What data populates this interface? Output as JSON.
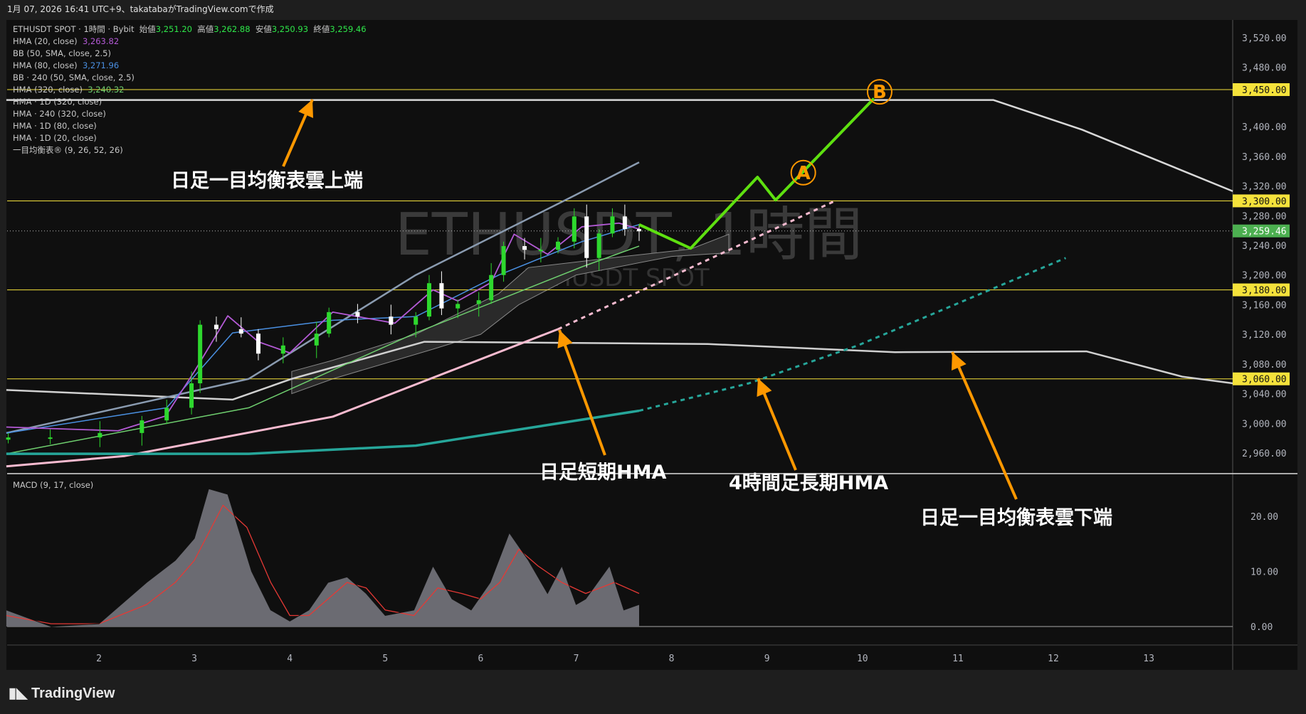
{
  "header": {
    "caption": "1月 07, 2026 16:41 UTC+9、takatabaがTradingView.comで作成"
  },
  "legend": {
    "symbol": "ETHUSDT SPOT · 1時間 · Bybit",
    "open_label": "始値",
    "open": "3,251.20",
    "high_label": "高値",
    "high": "3,262.88",
    "low_label": "安値",
    "low": "3,250.93",
    "close_label": "終値",
    "close": "3,259.46",
    "indicators": [
      {
        "name": "HMA (20, close)",
        "value": "3,263.82",
        "color": "#b45ad6"
      },
      {
        "name": "BB (50, SMA, close, 2.5)",
        "value": ""
      },
      {
        "name": "HMA (80, close)",
        "value": "3,271.96",
        "color": "#4a90e2"
      },
      {
        "name": "BB · 240 (50, SMA, close, 2.5)",
        "value": ""
      },
      {
        "name": "HMA (320, close)",
        "value": "3,240.32",
        "color": "#6fcf6f"
      },
      {
        "name": "HMA · 1D (320, close)",
        "value": ""
      },
      {
        "name": "HMA · 240 (320, close)",
        "value": ""
      },
      {
        "name": "HMA · 1D (80, close)",
        "value": ""
      },
      {
        "name": "HMA · 1D (20, close)",
        "value": ""
      },
      {
        "name": "一目均衡表® (9, 26, 52, 26)",
        "value": ""
      }
    ]
  },
  "watermark": {
    "title": "ETHUSDT, 1時間",
    "subtitle": "ETHUSDT SPOT"
  },
  "annotations": {
    "cloud_top": "日足一目均衡表雲上端",
    "short_hma": "日足短期HMA",
    "long_hma": "4時間足長期HMA",
    "cloud_bottom": "日足一目均衡表雲下端",
    "point_a": "A",
    "point_b": "B"
  },
  "macd": {
    "label": "MACD (9, 17, close)"
  },
  "footer": {
    "brand": "TradingView"
  },
  "colors": {
    "up": "#2ed82e",
    "down": "#ffffff",
    "hline": "#f5e23b",
    "last_price": "#4caf50",
    "arrow": "#ff9800",
    "projection": "#5ee010",
    "pink": "#f8bbd0",
    "teal": "#26a69a"
  },
  "chart_data": {
    "type": "candlestick",
    "xlabel": "",
    "ylabel": "",
    "x_ticks": [
      "2",
      "3",
      "4",
      "5",
      "6",
      "7",
      "8",
      "9",
      "10",
      "11",
      "12",
      "13"
    ],
    "y_ticks": [
      "3,520.00",
      "3,480.00",
      "3,400.00",
      "3,360.00",
      "3,320.00",
      "3,280.00",
      "3,240.00",
      "3,200.00",
      "3,160.00",
      "3,120.00",
      "3,080.00",
      "3,040.00",
      "3,000.00",
      "2,960.00"
    ],
    "y_tick_values": [
      3520,
      3480,
      3400,
      3360,
      3320,
      3280,
      3240,
      3200,
      3160,
      3120,
      3080,
      3040,
      3000,
      2960
    ],
    "ylim": [
      2930,
      3540
    ],
    "xlim": [
      1,
      14
    ],
    "price_lines": [
      {
        "value": 3450,
        "label": "3,450.00"
      },
      {
        "value": 3300,
        "label": "3,300.00"
      },
      {
        "value": 3180,
        "label": "3,180.00"
      },
      {
        "value": 3060,
        "label": "3,060.00"
      }
    ],
    "last_price": {
      "value": 3259.46,
      "label": "3,259.46"
    },
    "close": [
      [
        1.05,
        2981
      ],
      [
        1.49,
        2981
      ],
      [
        2.01,
        2987
      ],
      [
        2.45,
        3004
      ],
      [
        2.71,
        3021
      ],
      [
        2.97,
        3054
      ],
      [
        3.06,
        3133
      ],
      [
        3.23,
        3127
      ],
      [
        3.49,
        3121
      ],
      [
        3.67,
        3094
      ],
      [
        3.93,
        3105
      ],
      [
        4.28,
        3121
      ],
      [
        4.41,
        3150
      ],
      [
        4.71,
        3144
      ],
      [
        5.06,
        3133
      ],
      [
        5.32,
        3144
      ],
      [
        5.46,
        3189
      ],
      [
        5.59,
        3155
      ],
      [
        5.76,
        3161
      ],
      [
        5.98,
        3166
      ],
      [
        6.11,
        3200
      ],
      [
        6.24,
        3239
      ],
      [
        6.46,
        3234
      ],
      [
        6.63,
        3234
      ],
      [
        6.81,
        3245
      ],
      [
        6.98,
        3279
      ],
      [
        7.11,
        3223
      ],
      [
        7.24,
        3256
      ],
      [
        7.38,
        3279
      ],
      [
        7.51,
        3262
      ],
      [
        7.66,
        3259
      ]
    ],
    "lines": [
      {
        "id": "hma-1d-320",
        "color": "#d8d8d8",
        "width": 2.5,
        "points": [
          [
            1.03,
            3436
          ],
          [
            11.37,
            3436
          ],
          [
            12.3,
            3396
          ],
          [
            13.88,
            3313
          ]
        ]
      },
      {
        "id": "hma-1d-80",
        "color": "#d0d0d0",
        "width": 2.5,
        "points": [
          [
            1.03,
            3045
          ],
          [
            3.4,
            3032
          ],
          [
            4.02,
            3060
          ],
          [
            5.41,
            3110
          ],
          [
            8.38,
            3107
          ],
          [
            10.34,
            3096
          ],
          [
            12.35,
            3097
          ],
          [
            13.35,
            3063
          ],
          [
            13.88,
            3054
          ]
        ]
      },
      {
        "id": "bb-upper",
        "color": "#8a9bb0",
        "width": 2.5,
        "points": [
          [
            1.03,
            2987
          ],
          [
            3.57,
            3060
          ],
          [
            5.32,
            3200
          ],
          [
            6.98,
            3307
          ],
          [
            7.66,
            3352
          ]
        ]
      },
      {
        "id": "hma-320",
        "color": "#6fcf6f",
        "width": 1.5,
        "points": [
          [
            1.03,
            2959
          ],
          [
            3.57,
            3021
          ],
          [
            5.32,
            3122
          ],
          [
            7.06,
            3211
          ],
          [
            7.66,
            3239
          ]
        ]
      },
      {
        "id": "hma-80",
        "color": "#4a90e2",
        "width": 1.5,
        "points": [
          [
            1.03,
            2987
          ],
          [
            2.71,
            3021
          ],
          [
            3.4,
            3122
          ],
          [
            4.45,
            3139
          ],
          [
            5.32,
            3144
          ],
          [
            6.19,
            3200
          ],
          [
            7.06,
            3245
          ],
          [
            7.66,
            3268
          ]
        ]
      },
      {
        "id": "hma-20",
        "color": "#b45ad6",
        "width": 1.8,
        "points": [
          [
            1.03,
            2995
          ],
          [
            2.2,
            2990
          ],
          [
            2.7,
            3010
          ],
          [
            3.0,
            3070
          ],
          [
            3.35,
            3145
          ],
          [
            3.67,
            3110
          ],
          [
            4.0,
            3095
          ],
          [
            4.45,
            3150
          ],
          [
            5.1,
            3135
          ],
          [
            5.5,
            3180
          ],
          [
            5.76,
            3165
          ],
          [
            6.11,
            3190
          ],
          [
            6.35,
            3255
          ],
          [
            6.7,
            3228
          ],
          [
            7.06,
            3265
          ],
          [
            7.45,
            3270
          ],
          [
            7.66,
            3262
          ]
        ]
      },
      {
        "id": "hma-1d-20",
        "color": "#f8bbd0",
        "width": 3,
        "points": [
          [
            1.03,
            2942
          ],
          [
            2.27,
            2956
          ],
          [
            4.45,
            3009
          ],
          [
            6.81,
            3127
          ]
        ]
      },
      {
        "id": "hma-1d-20-proj",
        "color": "#f8bbd0",
        "width": 3,
        "dashed": true,
        "points": [
          [
            6.81,
            3127
          ],
          [
            9.73,
            3301
          ]
        ]
      },
      {
        "id": "hma-240-320",
        "color": "#26a69a",
        "width": 3.5,
        "points": [
          [
            1.03,
            2959
          ],
          [
            3.57,
            2959
          ],
          [
            5.32,
            2970
          ],
          [
            7.66,
            3017
          ]
        ]
      },
      {
        "id": "hma-240-320-proj",
        "color": "#26a69a",
        "width": 3,
        "dashed": true,
        "points": [
          [
            7.66,
            3017
          ],
          [
            8.81,
            3054
          ],
          [
            9.95,
            3105
          ],
          [
            12.13,
            3223
          ]
        ]
      },
      {
        "id": "projection",
        "color": "#5ee010",
        "width": 4,
        "points": [
          [
            7.66,
            3268
          ],
          [
            8.2,
            3236
          ],
          [
            8.9,
            3332
          ],
          [
            9.09,
            3301
          ],
          [
            10.12,
            3438
          ]
        ]
      }
    ],
    "cloud": {
      "upper": [
        [
          4.02,
          3070
        ],
        [
          4.45,
          3085
        ],
        [
          5.32,
          3120
        ],
        [
          6.19,
          3175
        ],
        [
          6.5,
          3210
        ],
        [
          7.5,
          3225
        ],
        [
          8.2,
          3235
        ],
        [
          8.6,
          3255
        ]
      ],
      "lower": [
        [
          8.6,
          3230
        ],
        [
          8.0,
          3225
        ],
        [
          7.0,
          3200
        ],
        [
          6.4,
          3160
        ],
        [
          6.0,
          3120
        ],
        [
          5.5,
          3100
        ],
        [
          4.45,
          3060
        ],
        [
          4.02,
          3040
        ]
      ]
    },
    "markers": [
      {
        "label": "A",
        "x": 9.38,
        "y": 3338
      },
      {
        "label": "B",
        "x": 10.18,
        "y": 3447
      }
    ],
    "macd_ticks": [
      {
        "value": 20,
        "label": "20.00"
      },
      {
        "value": 10,
        "label": "10.00"
      },
      {
        "value": 0,
        "label": "0.00"
      }
    ],
    "macd_hist": [
      [
        1.03,
        3
      ],
      [
        1.5,
        0
      ],
      [
        2.0,
        0.5
      ],
      [
        2.5,
        8
      ],
      [
        2.8,
        12
      ],
      [
        3.0,
        16
      ],
      [
        3.15,
        25
      ],
      [
        3.35,
        24
      ],
      [
        3.6,
        10
      ],
      [
        3.8,
        3
      ],
      [
        4.0,
        1
      ],
      [
        4.2,
        3
      ],
      [
        4.4,
        8
      ],
      [
        4.6,
        9
      ],
      [
        4.8,
        6
      ],
      [
        5.0,
        2
      ],
      [
        5.3,
        3
      ],
      [
        5.5,
        11
      ],
      [
        5.7,
        5
      ],
      [
        5.9,
        3
      ],
      [
        6.1,
        8
      ],
      [
        6.3,
        17
      ],
      [
        6.5,
        12
      ],
      [
        6.7,
        6
      ],
      [
        6.85,
        11
      ],
      [
        7.0,
        4
      ],
      [
        7.1,
        5
      ],
      [
        7.35,
        11
      ],
      [
        7.5,
        3
      ],
      [
        7.66,
        4
      ]
    ],
    "macd_signal": [
      [
        1.03,
        2
      ],
      [
        1.5,
        0.5
      ],
      [
        2.0,
        0.5
      ],
      [
        2.5,
        4
      ],
      [
        2.8,
        8
      ],
      [
        3.0,
        12
      ],
      [
        3.3,
        22
      ],
      [
        3.55,
        18
      ],
      [
        3.8,
        8
      ],
      [
        4.0,
        2
      ],
      [
        4.2,
        2
      ],
      [
        4.4,
        5
      ],
      [
        4.6,
        8
      ],
      [
        4.8,
        7
      ],
      [
        5.0,
        3
      ],
      [
        5.3,
        2
      ],
      [
        5.55,
        7
      ],
      [
        5.8,
        6
      ],
      [
        6.0,
        5
      ],
      [
        6.2,
        8
      ],
      [
        6.4,
        14
      ],
      [
        6.6,
        11
      ],
      [
        6.85,
        8
      ],
      [
        7.1,
        6
      ],
      [
        7.4,
        8
      ],
      [
        7.66,
        6
      ]
    ]
  }
}
